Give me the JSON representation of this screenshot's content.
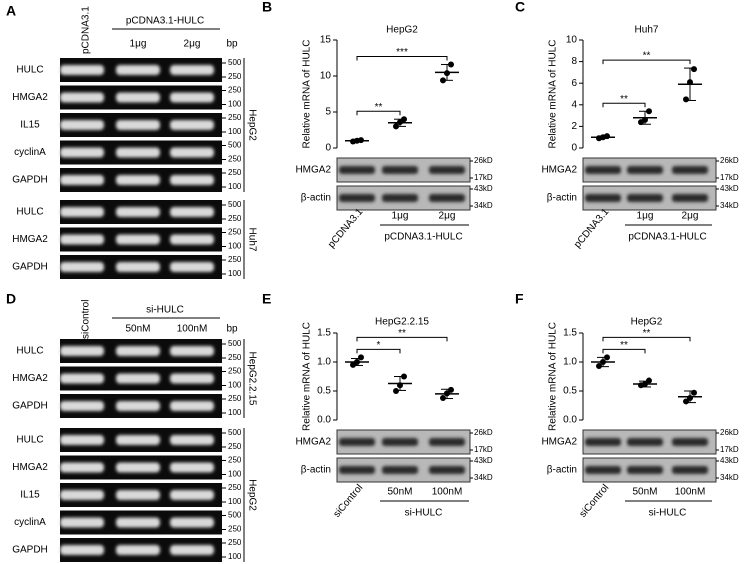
{
  "chart_data": [
    {
      "type": "scatter",
      "panel": "B",
      "title": "HepG2",
      "y_label": "Relative mRNA of HULC",
      "categories": [
        "pCDNA3.1",
        "1μg",
        "2μg"
      ],
      "group_label": "pCDNA3.1-HULC",
      "points": [
        [
          0.9,
          1.0,
          1.1
        ],
        [
          3.0,
          3.6,
          4.0
        ],
        [
          9.4,
          10.4,
          11.6
        ]
      ],
      "means": [
        1.0,
        3.5,
        10.5
      ],
      "errors": [
        0.1,
        0.5,
        1.1
      ],
      "ylim": [
        0,
        15
      ],
      "yticks": [
        0,
        5,
        10,
        15
      ],
      "annotations": [
        "**",
        "***"
      ],
      "color": "#000000",
      "blots": [
        {
          "label": "HMGA2",
          "markers": [
            "26kD",
            "17kD"
          ]
        },
        {
          "label": "β-actin",
          "markers": [
            "43kD",
            "34kD"
          ]
        }
      ]
    },
    {
      "type": "scatter",
      "panel": "C",
      "title": "Huh7",
      "y_label": "Relative mRNA of HULC",
      "categories": [
        "pCDNA3.1",
        "1μg",
        "2μg"
      ],
      "group_label": "pCDNA3.1-HULC",
      "points": [
        [
          0.9,
          1.0,
          1.1
        ],
        [
          2.4,
          2.6,
          3.4
        ],
        [
          4.5,
          6.1,
          7.3
        ]
      ],
      "means": [
        1.0,
        2.8,
        5.9
      ],
      "errors": [
        0.1,
        0.6,
        1.5
      ],
      "ylim": [
        0,
        10
      ],
      "yticks": [
        0,
        2,
        4,
        6,
        8,
        10
      ],
      "annotations": [
        "**",
        "**"
      ],
      "color": "#000000",
      "blots": [
        {
          "label": "HMGA2",
          "markers": [
            "26kD",
            "17kD"
          ]
        },
        {
          "label": "β-actin",
          "markers": [
            "43kD",
            "34kD"
          ]
        }
      ]
    },
    {
      "type": "scatter",
      "panel": "E",
      "title": "HepG2.2.15",
      "y_label": "Relative mRNA of HULC",
      "categories": [
        "siControl",
        "50nM",
        "100nM"
      ],
      "group_label": "si-HULC",
      "points": [
        [
          0.95,
          1.0,
          1.08
        ],
        [
          0.5,
          0.6,
          0.75
        ],
        [
          0.38,
          0.46,
          0.52
        ]
      ],
      "means": [
        1.0,
        0.63,
        0.45
      ],
      "errors": [
        0.06,
        0.12,
        0.08
      ],
      "ylim": [
        0,
        1.5
      ],
      "yticks": [
        {
          "value": 0,
          "label": "0.0"
        },
        0.5,
        {
          "value": 1,
          "label": "1.0"
        },
        1.5
      ],
      "annotations": [
        "*",
        "**"
      ],
      "color": "#000000",
      "blots": [
        {
          "label": "HMGA2",
          "markers": [
            "26kD",
            "17kD"
          ]
        },
        {
          "label": "β-actin",
          "markers": [
            "43kD",
            "34kD"
          ]
        }
      ]
    },
    {
      "type": "scatter",
      "panel": "F",
      "title": "HepG2",
      "y_label": "Relative mRNA of HULC",
      "categories": [
        "siControl",
        "50nM",
        "100nM"
      ],
      "group_label": "si-HULC",
      "points": [
        [
          0.93,
          1.0,
          1.08
        ],
        [
          0.6,
          0.62,
          0.68
        ],
        [
          0.32,
          0.38,
          0.47
        ]
      ],
      "means": [
        1.0,
        0.62,
        0.4
      ],
      "errors": [
        0.08,
        0.05,
        0.1
      ],
      "ylim": [
        0,
        1.5
      ],
      "yticks": [
        {
          "value": 0,
          "label": "0.0"
        },
        0.5,
        {
          "value": 1,
          "label": "1.0"
        },
        1.5
      ],
      "annotations": [
        "**",
        "**"
      ],
      "color": "#000000",
      "blots": [
        {
          "label": "HMGA2",
          "markers": [
            "26kD",
            "17kD"
          ]
        },
        {
          "label": "β-actin",
          "markers": [
            "43kD",
            "34kD"
          ]
        }
      ]
    }
  ],
  "gels": [
    {
      "panel": "A",
      "lane_labels": [
        "pCDNA3.1",
        "1μg",
        "2μg"
      ],
      "group_label": "pCDNA3.1-HULC",
      "unit": "bp",
      "blocks": [
        {
          "name": "HepG2",
          "rows": [
            {
              "label": "HULC",
              "markers": [
                500,
                250
              ]
            },
            {
              "label": "HMGA2",
              "markers": [
                250,
                100
              ]
            },
            {
              "label": "IL15",
              "markers": [
                250,
                100
              ]
            },
            {
              "label": "cyclinA",
              "markers": [
                500,
                250
              ]
            },
            {
              "label": "GAPDH",
              "markers": [
                250,
                100
              ]
            }
          ]
        },
        {
          "name": "Huh7",
          "rows": [
            {
              "label": "HULC",
              "markers": [
                500,
                250
              ]
            },
            {
              "label": "HMGA2",
              "markers": [
                250,
                100
              ]
            },
            {
              "label": "GAPDH",
              "markers": [
                250,
                100
              ]
            }
          ]
        }
      ]
    },
    {
      "panel": "D",
      "lane_labels": [
        "siControl",
        "50nM",
        "100nM"
      ],
      "group_label": "si-HULC",
      "unit": "bp",
      "blocks": [
        {
          "name": "HepG2.2.15",
          "rows": [
            {
              "label": "HULC",
              "markers": [
                500,
                250
              ]
            },
            {
              "label": "HMGA2",
              "markers": [
                250,
                100
              ]
            },
            {
              "label": "GAPDH",
              "markers": [
                250,
                100
              ]
            }
          ]
        },
        {
          "name": "HepG2",
          "rows": [
            {
              "label": "HULC",
              "markers": [
                500,
                250
              ]
            },
            {
              "label": "HMGA2",
              "markers": [
                250,
                100
              ]
            },
            {
              "label": "IL15",
              "markers": [
                250,
                100
              ]
            },
            {
              "label": "cyclinA",
              "markers": [
                500,
                250
              ]
            },
            {
              "label": "GAPDH",
              "markers": [
                250,
                100
              ]
            }
          ]
        }
      ]
    }
  ]
}
